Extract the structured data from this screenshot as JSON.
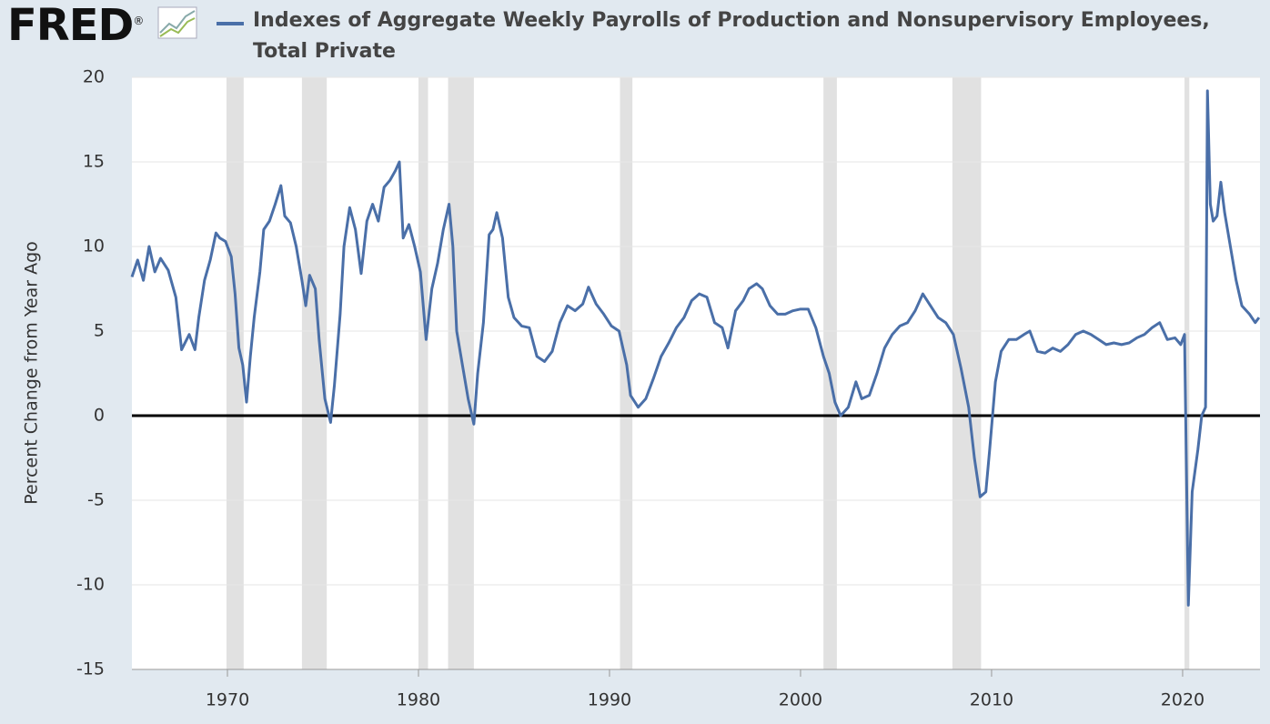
{
  "logo": "FRED",
  "logo_mark": "®",
  "chart_data": {
    "type": "line",
    "title": "Indexes of Aggregate Weekly Payrolls of Production and Nonsupervisory Employees, Total Private",
    "y_label": "Percent Change from Year Ago",
    "xlim": [
      1965,
      2024.05
    ],
    "ylim": [
      -15,
      20
    ],
    "xticks": [
      1970,
      1980,
      1990,
      2000,
      2010,
      2020
    ],
    "yticks": [
      -15,
      -10,
      -5,
      0,
      5,
      10,
      15,
      20
    ],
    "grid": true,
    "recessions": [
      [
        1969.95,
        1970.85
      ],
      [
        1973.9,
        1975.2
      ],
      [
        1980.0,
        1980.5
      ],
      [
        1981.55,
        1982.9
      ],
      [
        1990.55,
        1991.2
      ],
      [
        2001.2,
        2001.9
      ],
      [
        2007.95,
        2009.45
      ],
      [
        2020.1,
        2020.35
      ]
    ],
    "series": [
      {
        "name": "Indexes of Aggregate Weekly Payrolls of Production and Nonsupervisory Employees, Total Private",
        "color": "#4a6fa8",
        "x": [
          1965.0,
          1965.3,
          1965.6,
          1965.9,
          1966.2,
          1966.5,
          1966.9,
          1967.3,
          1967.6,
          1968.0,
          1968.3,
          1968.5,
          1968.8,
          1969.1,
          1969.4,
          1969.6,
          1969.9,
          1970.2,
          1970.4,
          1970.6,
          1970.8,
          1971.0,
          1971.2,
          1971.4,
          1971.7,
          1971.9,
          1972.2,
          1972.5,
          1972.8,
          1973.0,
          1973.3,
          1973.6,
          1973.9,
          1974.1,
          1974.3,
          1974.6,
          1974.8,
          1975.1,
          1975.4,
          1975.6,
          1975.9,
          1976.1,
          1976.4,
          1976.7,
          1977.0,
          1977.3,
          1977.6,
          1977.9,
          1978.2,
          1978.5,
          1978.8,
          1979.0,
          1979.2,
          1979.5,
          1979.8,
          1980.1,
          1980.4,
          1980.7,
          1981.0,
          1981.3,
          1981.6,
          1981.8,
          1982.0,
          1982.3,
          1982.6,
          1982.9,
          1983.1,
          1983.4,
          1983.7,
          1983.9,
          1984.1,
          1984.4,
          1984.7,
          1985.0,
          1985.4,
          1985.8,
          1986.2,
          1986.6,
          1987.0,
          1987.4,
          1987.8,
          1988.2,
          1988.6,
          1988.9,
          1989.3,
          1989.7,
          1990.1,
          1990.5,
          1990.9,
          1991.1,
          1991.5,
          1991.9,
          1992.3,
          1992.7,
          1993.1,
          1993.5,
          1993.9,
          1994.3,
          1994.7,
          1995.1,
          1995.5,
          1995.9,
          1996.2,
          1996.6,
          1997.0,
          1997.3,
          1997.7,
          1998.0,
          1998.4,
          1998.8,
          1999.2,
          1999.6,
          2000.0,
          2000.4,
          2000.8,
          2001.2,
          2001.5,
          2001.8,
          2002.1,
          2002.5,
          2002.9,
          2003.2,
          2003.6,
          2004.0,
          2004.4,
          2004.8,
          2005.2,
          2005.6,
          2006.0,
          2006.4,
          2006.8,
          2007.2,
          2007.6,
          2008.0,
          2008.4,
          2008.8,
          2009.1,
          2009.4,
          2009.7,
          2009.9,
          2010.2,
          2010.5,
          2010.9,
          2011.3,
          2011.7,
          2012.0,
          2012.4,
          2012.8,
          2013.2,
          2013.6,
          2014.0,
          2014.4,
          2014.8,
          2015.2,
          2015.6,
          2016.0,
          2016.4,
          2016.8,
          2017.2,
          2017.6,
          2018.0,
          2018.4,
          2018.8,
          2019.2,
          2019.6,
          2019.9,
          2020.1,
          2020.3,
          2020.5,
          2020.8,
          2021.0,
          2021.2,
          2021.3,
          2021.45,
          2021.6,
          2021.8,
          2022.0,
          2022.2,
          2022.5,
          2022.8,
          2023.1,
          2023.5,
          2023.8,
          2024.0
        ],
        "values": [
          8.2,
          9.2,
          8.0,
          10.0,
          8.5,
          9.3,
          8.6,
          7.0,
          3.9,
          4.8,
          3.9,
          5.8,
          8.0,
          9.2,
          10.8,
          10.5,
          10.3,
          9.4,
          7.2,
          4.0,
          3.0,
          0.8,
          3.5,
          5.8,
          8.5,
          11.0,
          11.5,
          12.5,
          13.6,
          11.8,
          11.4,
          10.0,
          8.0,
          6.5,
          8.3,
          7.5,
          4.5,
          1.0,
          -0.4,
          1.8,
          6.0,
          10.0,
          12.3,
          11.0,
          8.4,
          11.5,
          12.5,
          11.5,
          13.5,
          13.9,
          14.5,
          15.0,
          10.5,
          11.3,
          10.0,
          8.5,
          4.5,
          7.5,
          9.0,
          11.0,
          12.5,
          10.0,
          5.0,
          3.0,
          1.0,
          -0.5,
          2.5,
          5.5,
          10.7,
          11.0,
          12.0,
          10.5,
          7.0,
          5.8,
          5.3,
          5.2,
          3.5,
          3.2,
          3.8,
          5.5,
          6.5,
          6.2,
          6.6,
          7.6,
          6.6,
          6.0,
          5.3,
          5.0,
          3.0,
          1.2,
          0.5,
          1.0,
          2.2,
          3.5,
          4.3,
          5.2,
          5.8,
          6.8,
          7.2,
          7.0,
          5.5,
          5.2,
          4.0,
          6.2,
          6.8,
          7.5,
          7.8,
          7.5,
          6.5,
          6.0,
          6.0,
          6.2,
          6.3,
          6.3,
          5.2,
          3.5,
          2.5,
          0.8,
          0.0,
          0.5,
          2.0,
          1.0,
          1.2,
          2.5,
          4.0,
          4.8,
          5.3,
          5.5,
          6.2,
          7.2,
          6.5,
          5.8,
          5.5,
          4.8,
          2.8,
          0.5,
          -2.5,
          -4.8,
          -4.5,
          -2.0,
          2.0,
          3.8,
          4.5,
          4.5,
          4.8,
          5.0,
          3.8,
          3.7,
          4.0,
          3.8,
          4.2,
          4.8,
          5.0,
          4.8,
          4.5,
          4.2,
          4.3,
          4.2,
          4.3,
          4.6,
          4.8,
          5.2,
          5.5,
          4.5,
          4.6,
          4.2,
          4.8,
          -11.2,
          -4.5,
          -2.0,
          0.0,
          0.5,
          19.2,
          12.5,
          11.5,
          11.8,
          13.8,
          12.0,
          10.0,
          8.0,
          6.5,
          6.0,
          5.5,
          5.8
        ]
      }
    ]
  }
}
